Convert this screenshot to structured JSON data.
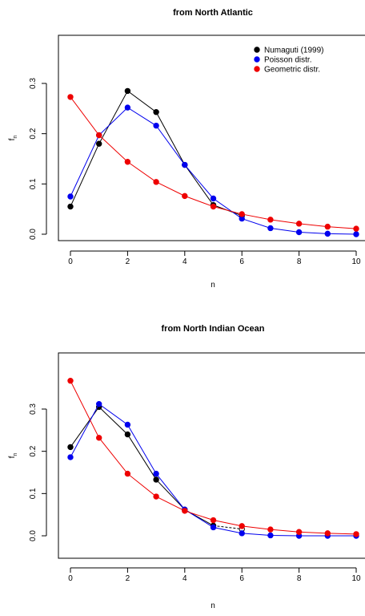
{
  "chart_data": [
    {
      "type": "line",
      "title": "from North Atlantic",
      "xlabel": "n",
      "ylabel": "f",
      "ylabel_sub": "n",
      "xlim": [
        0,
        10
      ],
      "ylim": [
        0,
        0.3
      ],
      "xticks": [
        "0",
        "2",
        "4",
        "6",
        "8",
        "10"
      ],
      "yticks": [
        "0.0",
        "0.1",
        "0.2",
        "0.3"
      ],
      "legend_position": "top-right",
      "series": [
        {
          "name": "Numaguti (1999)",
          "color": "#000000",
          "x": [
            0,
            1,
            2,
            3,
            4,
            5,
            6
          ],
          "values": [
            0.055,
            0.18,
            0.285,
            0.243,
            0.138,
            0.058,
            0.037
          ]
        },
        {
          "name": "Poisson distr.",
          "color": "#0000ee",
          "x": [
            0,
            1,
            2,
            3,
            4,
            5,
            6,
            7,
            8,
            9,
            10
          ],
          "values": [
            0.075,
            0.197,
            0.252,
            0.216,
            0.138,
            0.071,
            0.031,
            0.012,
            0.004,
            0.001,
            0.0
          ]
        },
        {
          "name": "Geometric distr.",
          "color": "#ee0000",
          "x": [
            0,
            1,
            2,
            3,
            4,
            5,
            6,
            7,
            8,
            9,
            10
          ],
          "values": [
            0.273,
            0.197,
            0.144,
            0.104,
            0.076,
            0.055,
            0.04,
            0.029,
            0.021,
            0.015,
            0.011
          ]
        }
      ]
    },
    {
      "type": "line",
      "title": "from North Indian Ocean",
      "xlabel": "n",
      "ylabel": "f",
      "ylabel_sub": "n",
      "xlim": [
        0,
        10
      ],
      "ylim": [
        0,
        0.3
      ],
      "xticks": [
        "0",
        "2",
        "4",
        "6",
        "8",
        "10"
      ],
      "yticks": [
        "0.0",
        "0.1",
        "0.2",
        "0.3"
      ],
      "series": [
        {
          "name": "",
          "color": "#000000",
          "x": [
            0,
            1,
            2,
            3,
            4,
            5,
            6
          ],
          "values": [
            0.21,
            0.305,
            0.24,
            0.133,
            0.062,
            0.024,
            0.016
          ],
          "open_last": true
        },
        {
          "name": "",
          "color": "#0000ee",
          "x": [
            0,
            1,
            2,
            3,
            4,
            5,
            6,
            7,
            8,
            9,
            10
          ],
          "values": [
            0.186,
            0.312,
            0.263,
            0.147,
            0.062,
            0.02,
            0.006,
            0.001,
            0.0,
            0.0,
            0.0
          ]
        },
        {
          "name": "",
          "color": "#ee0000",
          "x": [
            0,
            1,
            2,
            3,
            4,
            5,
            6,
            7,
            8,
            9,
            10
          ],
          "values": [
            0.367,
            0.232,
            0.147,
            0.093,
            0.059,
            0.037,
            0.023,
            0.015,
            0.009,
            0.006,
            0.004
          ]
        }
      ]
    }
  ]
}
